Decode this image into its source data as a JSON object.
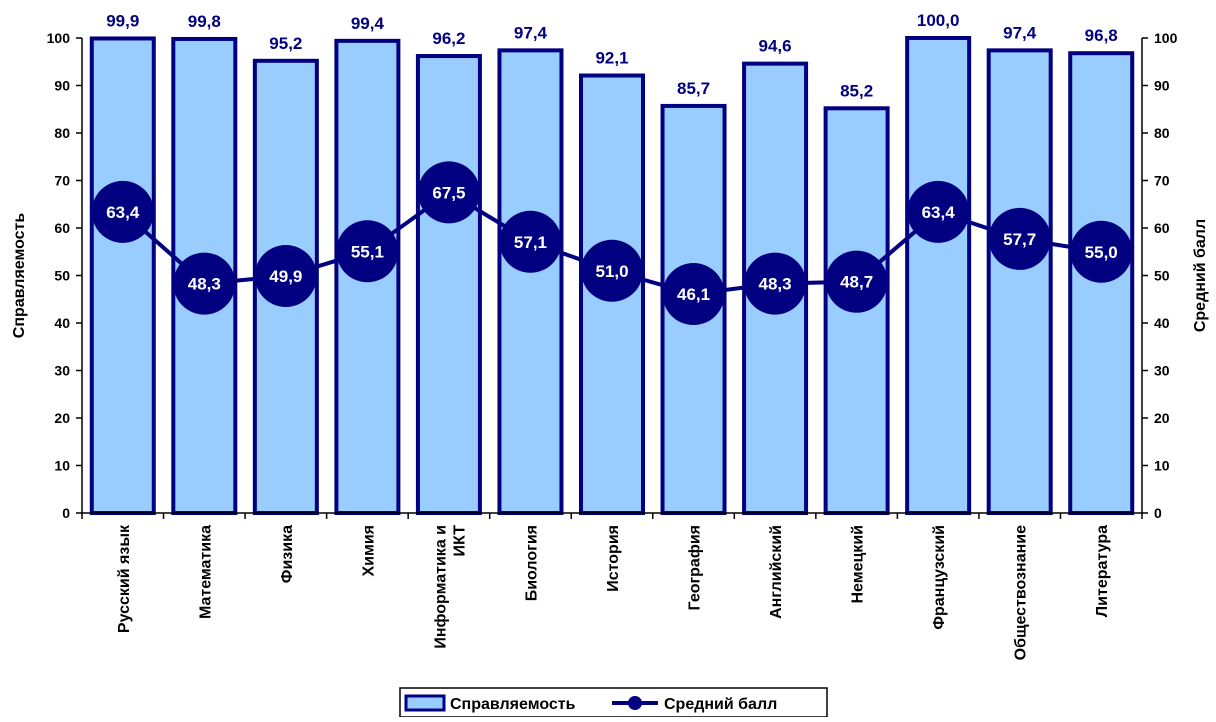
{
  "chart_data": {
    "type": "bar",
    "categories": [
      "Русский язык",
      "Математика",
      "Физика",
      "Химия",
      "Информатика и ИКТ",
      "Биология",
      "История",
      "География",
      "Английский",
      "Немецкий",
      "Французский",
      "Обществознание",
      "Литература"
    ],
    "series": [
      {
        "name": "Справляемость",
        "type": "bar",
        "axis": "left",
        "values": [
          99.9,
          99.8,
          95.2,
          99.4,
          96.2,
          97.4,
          92.1,
          85.7,
          94.6,
          85.2,
          100.0,
          97.4,
          96.8
        ],
        "labels": [
          "99,9",
          "99,8",
          "95,2",
          "99,4",
          "96,2",
          "97,4",
          "92,1",
          "85,7",
          "94,6",
          "85,2",
          "100,0",
          "97,4",
          "96,8"
        ]
      },
      {
        "name": "Средний балл",
        "type": "line",
        "axis": "right",
        "values": [
          63.4,
          48.3,
          49.9,
          55.1,
          67.5,
          57.1,
          51.0,
          46.1,
          48.3,
          48.7,
          63.4,
          57.7,
          55.0
        ],
        "labels": [
          "63,4",
          "48,3",
          "49,9",
          "55,1",
          "67,5",
          "57,1",
          "51,0",
          "46,1",
          "48,3",
          "48,7",
          "63,4",
          "57,7",
          "55,0"
        ]
      }
    ],
    "title": "",
    "ylabel": "Справляемость",
    "y2label": "Средний балл",
    "ylim": [
      0,
      100
    ],
    "y2lim": [
      0,
      100
    ],
    "yticks": [
      0,
      10,
      20,
      30,
      40,
      50,
      60,
      70,
      80,
      90,
      100
    ],
    "grid": false,
    "legend_position": "bottom",
    "colors": {
      "bar_fill": "#99ccff",
      "bar_stroke": "#000080",
      "line": "#000080",
      "marker": "#000080",
      "marker_text": "#ffffff",
      "bar_label": "#000080",
      "axis": "#000000",
      "text": "#000000"
    }
  }
}
